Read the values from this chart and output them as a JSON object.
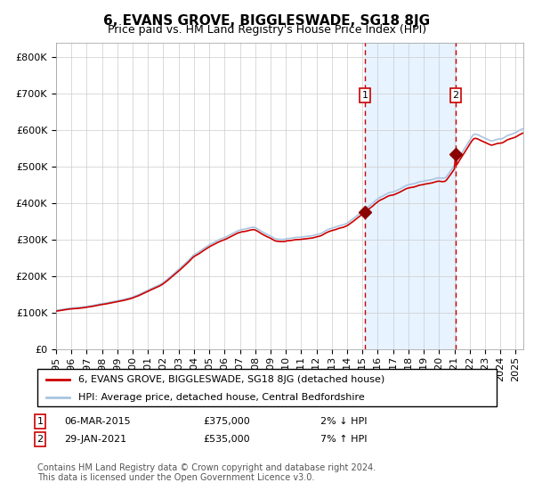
{
  "title": "6, EVANS GROVE, BIGGLESWADE, SG18 8JG",
  "subtitle": "Price paid vs. HM Land Registry's House Price Index (HPI)",
  "legend_entries": [
    "6, EVANS GROVE, BIGGLESWADE, SG18 8JG (detached house)",
    "HPI: Average price, detached house, Central Bedfordshire"
  ],
  "sale1_date": "06-MAR-2015",
  "sale1_price": 375000,
  "sale1_label": "1",
  "sale1_pct": "2% ↓ HPI",
  "sale2_date": "29-JAN-2021",
  "sale2_price": 535000,
  "sale2_label": "2",
  "sale2_pct": "7% ↑ HPI",
  "footer": "Contains HM Land Registry data © Crown copyright and database right 2024.\nThis data is licensed under the Open Government Licence v3.0.",
  "ylabel_ticks": [
    "£0",
    "£100K",
    "£200K",
    "£300K",
    "£400K",
    "£500K",
    "£600K",
    "£700K",
    "£800K"
  ],
  "ytick_values": [
    0,
    100000,
    200000,
    300000,
    400000,
    500000,
    600000,
    700000,
    800000
  ],
  "ylim": [
    0,
    840000
  ],
  "xlim_start": 1995.0,
  "xlim_end": 2025.5,
  "sale1_x": 2015.17,
  "sale2_x": 2021.08,
  "grid_color": "#cccccc",
  "hpi_line_color": "#aac4e0",
  "price_line_color": "#cc0000",
  "marker_color": "#8b0000",
  "vline_color": "#cc0000",
  "shade_color": "#ddeeff",
  "legend_box_color": "#cc0000",
  "title_fontsize": 11,
  "subtitle_fontsize": 9,
  "axis_fontsize": 8,
  "legend_fontsize": 8,
  "footer_fontsize": 7
}
